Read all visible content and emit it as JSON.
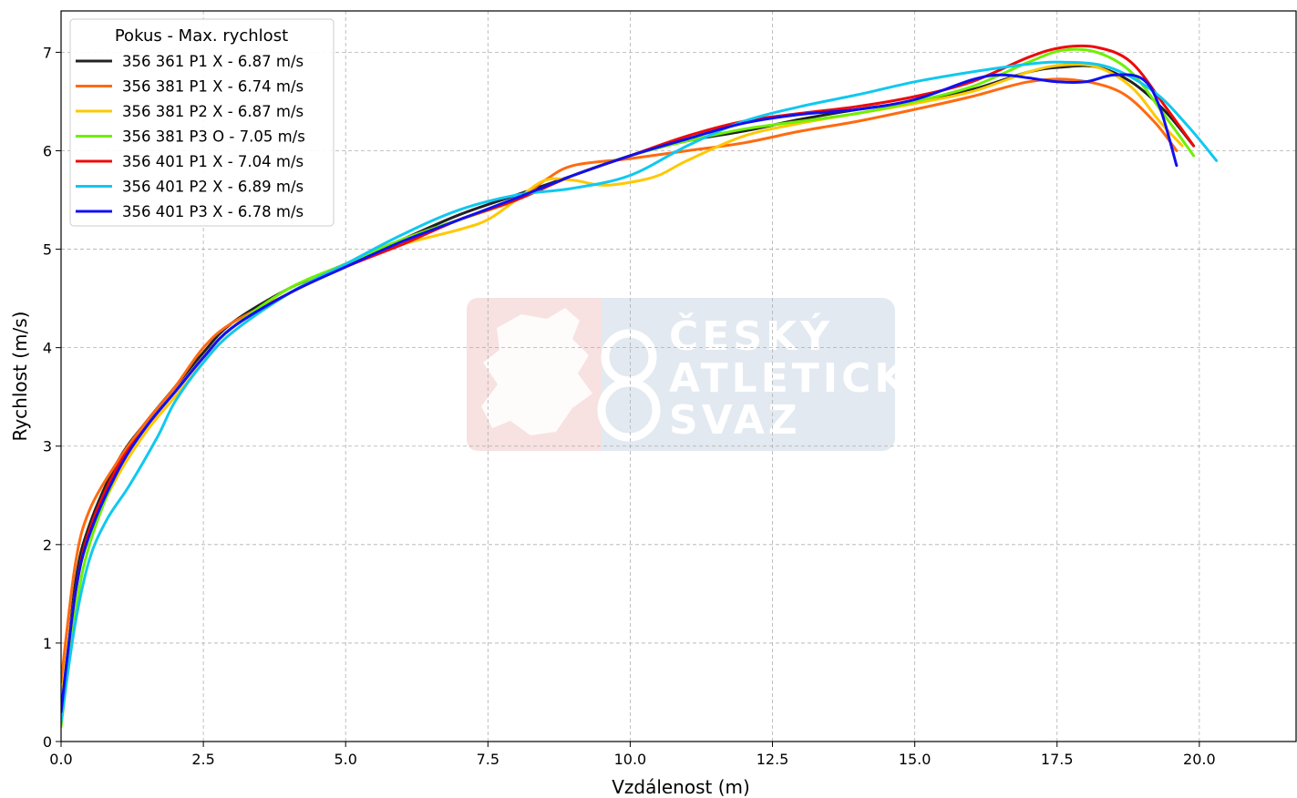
{
  "chart_data": {
    "type": "line",
    "title": "",
    "xlabel": "Vzdálenost (m)",
    "ylabel": "Rychlost (m/s)",
    "xlim": [
      0,
      21.7
    ],
    "ylim": [
      0,
      7.42
    ],
    "xticks": [
      0,
      2.5,
      5,
      7.5,
      10,
      12.5,
      15,
      17.5,
      20
    ],
    "xtick_labels": [
      "0.0",
      "2.5",
      "5.0",
      "7.5",
      "10.0",
      "12.5",
      "15.0",
      "17.5",
      "20.0"
    ],
    "yticks": [
      0,
      1,
      2,
      3,
      4,
      5,
      6,
      7
    ],
    "ytick_labels": [
      "0",
      "1",
      "2",
      "3",
      "4",
      "5",
      "6",
      "7"
    ],
    "grid": true,
    "legend": {
      "title": "Pokus - Max. rychlost",
      "placement": "top-left"
    },
    "watermark": {
      "lines": [
        "ČESKÝ",
        "ATLETICKÝ",
        "SVAZ"
      ]
    },
    "series": [
      {
        "name": "356 361 P1 X - 6.87 m/s",
        "color": "#222222",
        "points": [
          [
            0,
            0.2
          ],
          [
            0.25,
            1.6
          ],
          [
            0.5,
            2.2
          ],
          [
            1,
            2.85
          ],
          [
            1.5,
            3.25
          ],
          [
            2,
            3.6
          ],
          [
            2.5,
            3.95
          ],
          [
            3,
            4.25
          ],
          [
            4,
            4.6
          ],
          [
            5,
            4.85
          ],
          [
            6,
            5.1
          ],
          [
            7,
            5.35
          ],
          [
            8,
            5.55
          ],
          [
            9,
            5.75
          ],
          [
            10,
            5.95
          ],
          [
            11,
            6.1
          ],
          [
            12,
            6.2
          ],
          [
            13,
            6.32
          ],
          [
            14,
            6.42
          ],
          [
            15,
            6.5
          ],
          [
            16,
            6.62
          ],
          [
            17,
            6.8
          ],
          [
            17.6,
            6.85
          ],
          [
            18.2,
            6.85
          ],
          [
            18.8,
            6.7
          ],
          [
            19.4,
            6.4
          ],
          [
            19.9,
            6.05
          ]
        ]
      },
      {
        "name": "356 381 P1 X - 6.74 m/s",
        "color": "#ff6a10",
        "points": [
          [
            0,
            0.6
          ],
          [
            0.25,
            1.8
          ],
          [
            0.5,
            2.35
          ],
          [
            1,
            2.85
          ],
          [
            1.5,
            3.25
          ],
          [
            2,
            3.6
          ],
          [
            2.5,
            4.0
          ],
          [
            3,
            4.25
          ],
          [
            4,
            4.55
          ],
          [
            5,
            4.85
          ],
          [
            6,
            5.1
          ],
          [
            7,
            5.3
          ],
          [
            8,
            5.5
          ],
          [
            8.5,
            5.7
          ],
          [
            9,
            5.85
          ],
          [
            10,
            5.92
          ],
          [
            11,
            6.0
          ],
          [
            12,
            6.08
          ],
          [
            13,
            6.2
          ],
          [
            14,
            6.3
          ],
          [
            15,
            6.42
          ],
          [
            16,
            6.55
          ],
          [
            17,
            6.7
          ],
          [
            17.8,
            6.72
          ],
          [
            18.6,
            6.6
          ],
          [
            19.2,
            6.3
          ],
          [
            19.6,
            6.0
          ]
        ]
      },
      {
        "name": "356 381 P2 X - 6.87 m/s",
        "color": "#ffc800",
        "points": [
          [
            0,
            0.4
          ],
          [
            0.25,
            1.5
          ],
          [
            0.5,
            2.1
          ],
          [
            1,
            2.7
          ],
          [
            1.5,
            3.15
          ],
          [
            2,
            3.5
          ],
          [
            2.5,
            3.85
          ],
          [
            3,
            4.15
          ],
          [
            4,
            4.55
          ],
          [
            5,
            4.85
          ],
          [
            6,
            5.05
          ],
          [
            7,
            5.2
          ],
          [
            7.5,
            5.3
          ],
          [
            8,
            5.5
          ],
          [
            8.5,
            5.7
          ],
          [
            9,
            5.7
          ],
          [
            9.5,
            5.65
          ],
          [
            10,
            5.68
          ],
          [
            10.5,
            5.75
          ],
          [
            11,
            5.9
          ],
          [
            12,
            6.15
          ],
          [
            13,
            6.28
          ],
          [
            14,
            6.38
          ],
          [
            15,
            6.48
          ],
          [
            16,
            6.6
          ],
          [
            17,
            6.8
          ],
          [
            17.6,
            6.87
          ],
          [
            18.2,
            6.85
          ],
          [
            18.8,
            6.65
          ],
          [
            19.3,
            6.3
          ],
          [
            19.7,
            6.05
          ]
        ]
      },
      {
        "name": "356 381 P3 O - 7.05 m/s",
        "color": "#6ef000",
        "points": [
          [
            0,
            0.15
          ],
          [
            0.25,
            1.3
          ],
          [
            0.5,
            2.0
          ],
          [
            1,
            2.75
          ],
          [
            1.5,
            3.2
          ],
          [
            2,
            3.55
          ],
          [
            2.5,
            3.9
          ],
          [
            3,
            4.2
          ],
          [
            4,
            4.6
          ],
          [
            5,
            4.85
          ],
          [
            6,
            5.1
          ],
          [
            7,
            5.3
          ],
          [
            8,
            5.5
          ],
          [
            9,
            5.75
          ],
          [
            10,
            5.95
          ],
          [
            11,
            6.1
          ],
          [
            12,
            6.22
          ],
          [
            13,
            6.3
          ],
          [
            14,
            6.38
          ],
          [
            15,
            6.5
          ],
          [
            16,
            6.65
          ],
          [
            17,
            6.9
          ],
          [
            17.6,
            7.02
          ],
          [
            18.2,
            7.0
          ],
          [
            18.8,
            6.8
          ],
          [
            19.4,
            6.35
          ],
          [
            19.9,
            5.95
          ]
        ]
      },
      {
        "name": "356 401 P1 X - 7.04 m/s",
        "color": "#ee0a0a",
        "points": [
          [
            0,
            0.3
          ],
          [
            0.25,
            1.5
          ],
          [
            0.5,
            2.15
          ],
          [
            1,
            2.8
          ],
          [
            1.5,
            3.2
          ],
          [
            2,
            3.55
          ],
          [
            2.5,
            3.9
          ],
          [
            3,
            4.2
          ],
          [
            4,
            4.55
          ],
          [
            5,
            4.82
          ],
          [
            6,
            5.05
          ],
          [
            7,
            5.3
          ],
          [
            8,
            5.5
          ],
          [
            9,
            5.75
          ],
          [
            10,
            5.95
          ],
          [
            11,
            6.15
          ],
          [
            12,
            6.3
          ],
          [
            13,
            6.38
          ],
          [
            14,
            6.45
          ],
          [
            15,
            6.55
          ],
          [
            16,
            6.7
          ],
          [
            17,
            6.95
          ],
          [
            17.6,
            7.05
          ],
          [
            18.2,
            7.05
          ],
          [
            18.8,
            6.9
          ],
          [
            19.4,
            6.45
          ],
          [
            19.9,
            6.05
          ]
        ]
      },
      {
        "name": "356 401 P2 X - 6.89 m/s",
        "color": "#10c8f0",
        "points": [
          [
            0,
            0.2
          ],
          [
            0.25,
            1.2
          ],
          [
            0.5,
            1.85
          ],
          [
            0.8,
            2.25
          ],
          [
            1.2,
            2.6
          ],
          [
            1.7,
            3.1
          ],
          [
            2,
            3.45
          ],
          [
            2.5,
            3.85
          ],
          [
            3,
            4.15
          ],
          [
            4,
            4.55
          ],
          [
            5,
            4.85
          ],
          [
            6,
            5.15
          ],
          [
            7,
            5.4
          ],
          [
            8,
            5.55
          ],
          [
            9,
            5.62
          ],
          [
            10,
            5.75
          ],
          [
            11,
            6.05
          ],
          [
            12,
            6.3
          ],
          [
            13,
            6.45
          ],
          [
            14,
            6.57
          ],
          [
            15,
            6.7
          ],
          [
            16,
            6.8
          ],
          [
            17,
            6.88
          ],
          [
            17.6,
            6.9
          ],
          [
            18.4,
            6.85
          ],
          [
            19.2,
            6.6
          ],
          [
            19.8,
            6.25
          ],
          [
            20.3,
            5.9
          ]
        ]
      },
      {
        "name": "356 401 P3 X - 6.78 m/s",
        "color": "#1010f0",
        "points": [
          [
            0,
            0.3
          ],
          [
            0.25,
            1.5
          ],
          [
            0.5,
            2.1
          ],
          [
            1,
            2.75
          ],
          [
            1.5,
            3.2
          ],
          [
            2,
            3.55
          ],
          [
            2.5,
            3.9
          ],
          [
            3,
            4.2
          ],
          [
            4,
            4.55
          ],
          [
            5,
            4.82
          ],
          [
            6,
            5.08
          ],
          [
            7,
            5.3
          ],
          [
            8,
            5.52
          ],
          [
            9,
            5.75
          ],
          [
            10,
            5.95
          ],
          [
            11,
            6.12
          ],
          [
            12,
            6.28
          ],
          [
            13,
            6.37
          ],
          [
            14,
            6.42
          ],
          [
            15,
            6.52
          ],
          [
            16,
            6.72
          ],
          [
            16.5,
            6.77
          ],
          [
            17,
            6.74
          ],
          [
            17.5,
            6.7
          ],
          [
            18,
            6.7
          ],
          [
            18.5,
            6.77
          ],
          [
            19,
            6.73
          ],
          [
            19.3,
            6.45
          ],
          [
            19.6,
            5.85
          ]
        ]
      }
    ]
  }
}
